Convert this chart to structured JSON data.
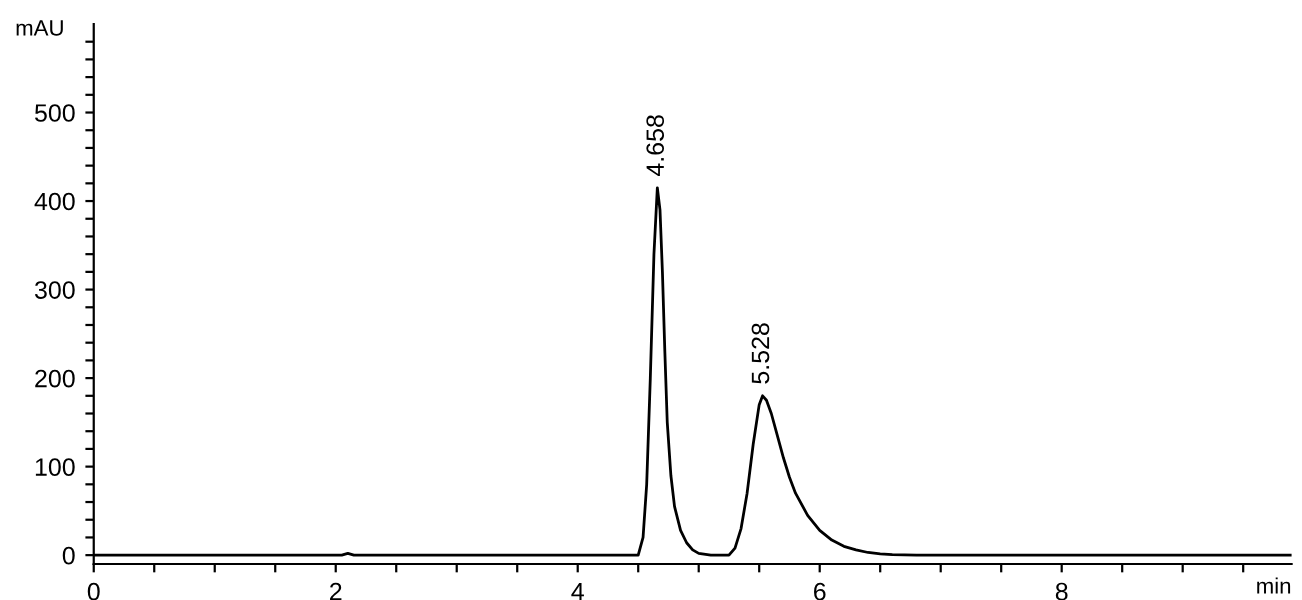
{
  "chart_data": {
    "type": "line",
    "xlabel": "min",
    "ylabel": "mAU",
    "x": [
      0,
      2.05,
      2.1,
      2.15,
      4.5,
      4.54,
      4.57,
      4.6,
      4.63,
      4.658,
      4.68,
      4.7,
      4.72,
      4.74,
      4.77,
      4.8,
      4.85,
      4.9,
      4.95,
      5.0,
      5.1,
      5.25,
      5.3,
      5.35,
      5.4,
      5.45,
      5.5,
      5.528,
      5.56,
      5.6,
      5.65,
      5.7,
      5.75,
      5.8,
      5.9,
      6.0,
      6.1,
      6.2,
      6.3,
      6.4,
      6.5,
      6.6,
      6.8,
      9.9
    ],
    "series": [
      {
        "color": "#000000",
        "values": [
          0,
          0,
          2,
          0,
          0,
          20,
          80,
          200,
          340,
          415,
          390,
          320,
          230,
          150,
          90,
          55,
          28,
          14,
          6,
          2,
          0,
          0,
          8,
          30,
          70,
          125,
          170,
          180,
          175,
          160,
          135,
          110,
          88,
          70,
          45,
          28,
          17,
          10,
          6,
          3,
          1.5,
          0.5,
          0,
          0
        ]
      }
    ],
    "annotations": [
      {
        "text": "4.658",
        "x": 4.658,
        "y": 415
      },
      {
        "text": "5.528",
        "x": 5.528,
        "y": 180
      }
    ],
    "xlim": [
      0,
      9.9
    ],
    "ylim": [
      -10,
      600
    ],
    "xticks": [
      0,
      {
        "value": 0.5,
        "label": null
      },
      {
        "value": 1,
        "label": null
      },
      {
        "value": 1.5,
        "label": null
      },
      2,
      {
        "value": 2.5,
        "label": null
      },
      {
        "value": 3,
        "label": null
      },
      {
        "value": 3.5,
        "label": null
      },
      4,
      {
        "value": 4.5,
        "label": null
      },
      {
        "value": 5,
        "label": null
      },
      {
        "value": 5.5,
        "label": null
      },
      6,
      {
        "value": 6.5,
        "label": null
      },
      {
        "value": 7,
        "label": null
      },
      {
        "value": 7.5,
        "label": null
      },
      8,
      {
        "value": 8.5,
        "label": null
      },
      {
        "value": 9,
        "label": null
      },
      {
        "value": 9.5,
        "label": null
      }
    ],
    "yticks": [
      0,
      {
        "value": 20,
        "label": null
      },
      {
        "value": 40,
        "label": null
      },
      {
        "value": 60,
        "label": null
      },
      {
        "value": 80,
        "label": null
      },
      100,
      {
        "value": 120,
        "label": null
      },
      {
        "value": 140,
        "label": null
      },
      {
        "value": 160,
        "label": null
      },
      {
        "value": 180,
        "label": null
      },
      200,
      {
        "value": 220,
        "label": null
      },
      {
        "value": 240,
        "label": null
      },
      {
        "value": 260,
        "label": null
      },
      {
        "value": 280,
        "label": null
      },
      300,
      {
        "value": 320,
        "label": null
      },
      {
        "value": 340,
        "label": null
      },
      {
        "value": 360,
        "label": null
      },
      {
        "value": 380,
        "label": null
      },
      400,
      {
        "value": 420,
        "label": null
      },
      {
        "value": 440,
        "label": null
      },
      {
        "value": 460,
        "label": null
      },
      {
        "value": 480,
        "label": null
      },
      500,
      {
        "value": 520,
        "label": null
      },
      {
        "value": 540,
        "label": null
      },
      {
        "value": 560,
        "label": null
      },
      {
        "value": 580,
        "label": null
      }
    ],
    "grid": false,
    "legend": false,
    "marker": "none",
    "line_style": "solid"
  }
}
